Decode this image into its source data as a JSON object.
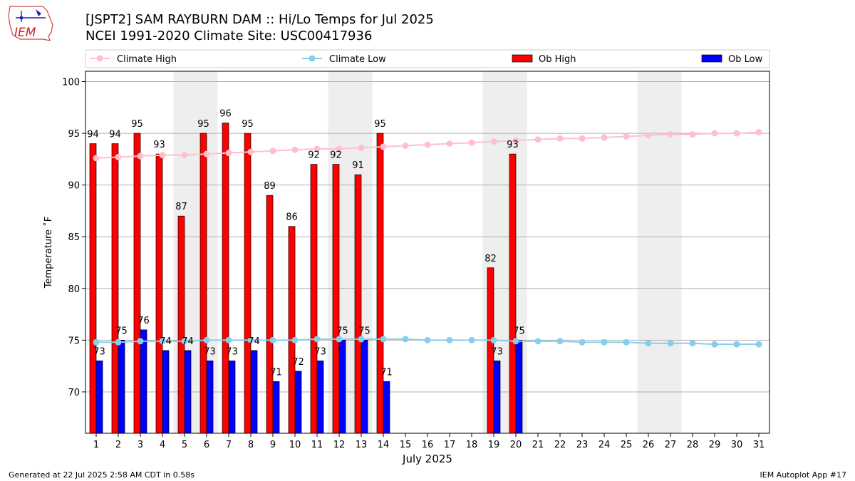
{
  "header": {
    "title_line1": "[JSPT2] SAM RAYBURN DAM :: Hi/Lo Temps for Jul 2025",
    "title_line2": "NCEI 1991-2020 Climate Site: USC00417936",
    "logo_text": "IEM"
  },
  "footer": {
    "generated": "Generated at 22 Jul 2025 2:58 AM CDT in 0.58s",
    "app": "IEM Autoplot App #17"
  },
  "colors": {
    "ob_high": "#ff0000",
    "ob_low": "#0000ff",
    "climate_high": "#ffc0cb",
    "climate_low": "#87ceeb",
    "weekend_shade": "#eeeeee",
    "grid": "#b0b0b0"
  },
  "chart_data": {
    "type": "bar",
    "xlabel": "July 2025",
    "ylabel": "Temperature ˚F",
    "ylim": [
      66,
      101
    ],
    "yticks": [
      70,
      75,
      80,
      85,
      90,
      95,
      100
    ],
    "grid": "horizontal",
    "legend_position": "top",
    "categories": [
      "1",
      "2",
      "3",
      "4",
      "5",
      "6",
      "7",
      "8",
      "9",
      "10",
      "11",
      "12",
      "13",
      "14",
      "15",
      "16",
      "17",
      "18",
      "19",
      "20",
      "21",
      "22",
      "23",
      "24",
      "25",
      "26",
      "27",
      "28",
      "29",
      "30",
      "31"
    ],
    "shaded_days": [
      [
        5,
        6
      ],
      [
        12,
        13
      ],
      [
        19,
        20
      ],
      [
        26,
        27
      ]
    ],
    "series": [
      {
        "name": "Climate High",
        "kind": "line",
        "values": [
          92.6,
          92.7,
          92.8,
          92.9,
          92.9,
          93.0,
          93.1,
          93.2,
          93.3,
          93.4,
          93.5,
          93.5,
          93.6,
          93.7,
          93.8,
          93.9,
          94.0,
          94.1,
          94.2,
          94.3,
          94.4,
          94.5,
          94.5,
          94.6,
          94.7,
          94.8,
          94.9,
          94.9,
          95.0,
          95.0,
          95.1
        ]
      },
      {
        "name": "Climate Low",
        "kind": "line",
        "values": [
          74.8,
          74.8,
          74.9,
          74.9,
          74.9,
          75.0,
          75.0,
          75.0,
          75.0,
          75.0,
          75.1,
          75.1,
          75.1,
          75.1,
          75.1,
          75.0,
          75.0,
          75.0,
          75.0,
          74.9,
          74.9,
          74.9,
          74.8,
          74.8,
          74.8,
          74.7,
          74.7,
          74.7,
          74.6,
          74.6,
          74.6
        ]
      },
      {
        "name": "Ob High",
        "kind": "bar",
        "values": [
          94,
          94,
          95,
          93,
          87,
          95,
          96,
          95,
          89,
          86,
          92,
          92,
          91,
          95,
          null,
          null,
          null,
          null,
          82,
          93,
          null,
          null,
          null,
          null,
          null,
          null,
          null,
          null,
          null,
          null,
          null
        ]
      },
      {
        "name": "Ob Low",
        "kind": "bar",
        "values": [
          73,
          75,
          76,
          74,
          74,
          73,
          73,
          74,
          71,
          72,
          73,
          75,
          75,
          71,
          null,
          null,
          null,
          null,
          73,
          75,
          null,
          null,
          null,
          null,
          null,
          null,
          null,
          null,
          null,
          null,
          null
        ]
      }
    ]
  }
}
